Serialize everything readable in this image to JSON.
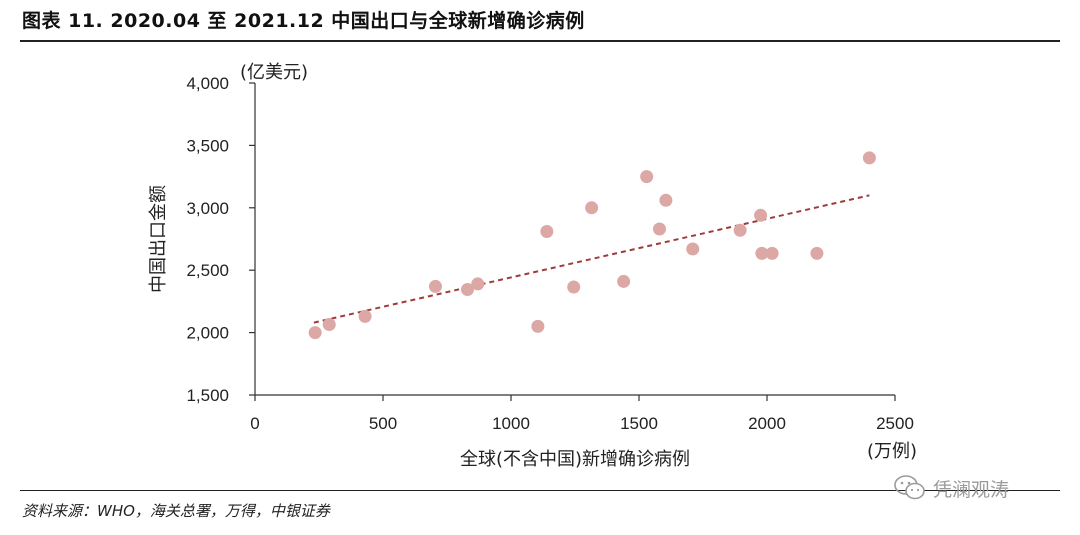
{
  "header": {
    "title": "图表 11. 2020.04 至 2021.12 中国出口与全球新增确诊病例"
  },
  "footer": {
    "source": "资料来源：WHO，海关总署，万得，中银证券",
    "watermark": "凭澜观涛"
  },
  "chart_data": {
    "type": "scatter",
    "title": "",
    "xlabel": "全球(不含中国)新增确诊病例",
    "xunit": "(万例)",
    "ylabel": "中国出口金额",
    "yunit": "(亿美元)",
    "xlim": [
      0,
      2500
    ],
    "ylim": [
      1500,
      4000
    ],
    "x_ticks": [
      0,
      500,
      1000,
      1500,
      2000,
      2500
    ],
    "x_tick_labels": [
      "0",
      "500",
      "1000",
      "1500",
      "2000",
      "2500"
    ],
    "y_ticks": [
      1500,
      2000,
      2500,
      3000,
      3500,
      4000
    ],
    "y_tick_labels": [
      "1,500",
      "2,000",
      "2,500",
      "3,000",
      "3,500",
      "4,000"
    ],
    "grid": false,
    "marker_color": "#dca8a5",
    "trendline_color": "#a33a3a",
    "points": [
      {
        "x": 235,
        "y": 2000
      },
      {
        "x": 290,
        "y": 2065
      },
      {
        "x": 430,
        "y": 2130
      },
      {
        "x": 705,
        "y": 2370
      },
      {
        "x": 830,
        "y": 2345
      },
      {
        "x": 870,
        "y": 2390
      },
      {
        "x": 1105,
        "y": 2050
      },
      {
        "x": 1140,
        "y": 2810
      },
      {
        "x": 1245,
        "y": 2365
      },
      {
        "x": 1315,
        "y": 3000
      },
      {
        "x": 1440,
        "y": 2410
      },
      {
        "x": 1530,
        "y": 3250
      },
      {
        "x": 1580,
        "y": 2830
      },
      {
        "x": 1605,
        "y": 3060
      },
      {
        "x": 1710,
        "y": 2670
      },
      {
        "x": 1895,
        "y": 2820
      },
      {
        "x": 1975,
        "y": 2940
      },
      {
        "x": 1980,
        "y": 2635
      },
      {
        "x": 2020,
        "y": 2635
      },
      {
        "x": 2195,
        "y": 2635
      },
      {
        "x": 2400,
        "y": 3400
      }
    ],
    "trendline": {
      "x": [
        230,
        2400
      ],
      "y": [
        2080,
        3100
      ]
    }
  }
}
